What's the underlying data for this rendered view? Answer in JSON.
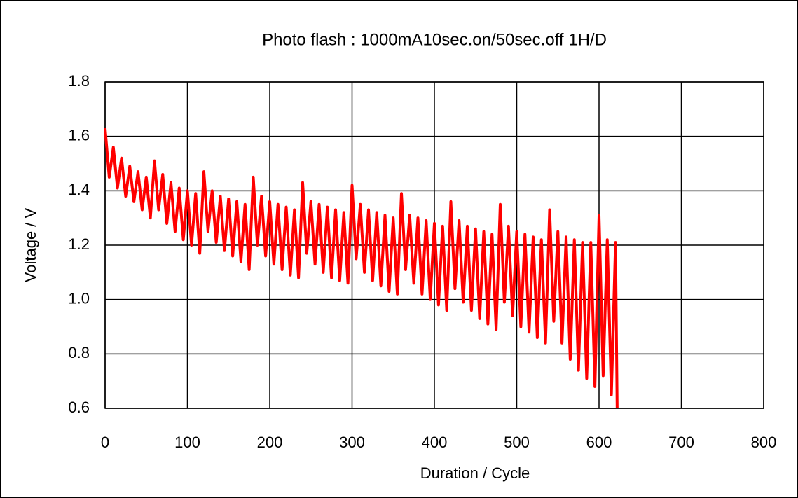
{
  "chart_data": {
    "type": "line",
    "title": "Photo flash  :  1000mA10sec.on/50sec.off 1H/D",
    "xlabel": "Duration / Cycle",
    "ylabel": "Voltage / V",
    "xlim": [
      0,
      800
    ],
    "xticks": [
      0,
      100,
      200,
      300,
      400,
      500,
      600,
      700,
      800
    ],
    "ylim": [
      0.6,
      1.8
    ],
    "yticks": [
      0.6,
      0.8,
      {
        "value": 1,
        "label": "1.0"
      },
      1.2,
      1.4,
      1.6,
      1.8
    ],
    "grid": true,
    "x": [
      0,
      5,
      10,
      15,
      20,
      25,
      30,
      35,
      40,
      45,
      50,
      55,
      60,
      65,
      70,
      75,
      80,
      85,
      90,
      95,
      100,
      105,
      110,
      115,
      120,
      125,
      130,
      135,
      140,
      145,
      150,
      155,
      160,
      165,
      170,
      175,
      180,
      185,
      190,
      195,
      200,
      205,
      210,
      215,
      220,
      225,
      230,
      235,
      240,
      245,
      250,
      255,
      260,
      265,
      270,
      275,
      280,
      285,
      290,
      295,
      300,
      305,
      310,
      315,
      320,
      325,
      330,
      335,
      340,
      345,
      350,
      355,
      360,
      365,
      370,
      375,
      380,
      385,
      390,
      395,
      400,
      405,
      410,
      415,
      420,
      425,
      430,
      435,
      440,
      445,
      450,
      455,
      460,
      465,
      470,
      475,
      480,
      485,
      490,
      495,
      500,
      505,
      510,
      515,
      520,
      525,
      530,
      535,
      540,
      545,
      550,
      555,
      560,
      565,
      570,
      575,
      580,
      585,
      590,
      595,
      600,
      605,
      610,
      615,
      620,
      622
    ],
    "series": [
      {
        "name": "Voltage",
        "color": "#ff0000",
        "values": [
          1.63,
          1.45,
          1.56,
          1.41,
          1.52,
          1.38,
          1.49,
          1.36,
          1.47,
          1.33,
          1.45,
          1.3,
          1.51,
          1.33,
          1.46,
          1.28,
          1.43,
          1.25,
          1.41,
          1.22,
          1.4,
          1.2,
          1.39,
          1.17,
          1.47,
          1.25,
          1.4,
          1.21,
          1.38,
          1.18,
          1.37,
          1.16,
          1.36,
          1.14,
          1.35,
          1.11,
          1.45,
          1.2,
          1.38,
          1.16,
          1.36,
          1.13,
          1.35,
          1.11,
          1.34,
          1.09,
          1.33,
          1.08,
          1.43,
          1.17,
          1.36,
          1.13,
          1.35,
          1.1,
          1.34,
          1.08,
          1.33,
          1.07,
          1.32,
          1.06,
          1.42,
          1.15,
          1.35,
          1.1,
          1.33,
          1.07,
          1.32,
          1.05,
          1.31,
          1.03,
          1.3,
          1.02,
          1.39,
          1.11,
          1.31,
          1.06,
          1.3,
          1.02,
          1.29,
          1.0,
          1.28,
          0.98,
          1.27,
          0.96,
          1.36,
          1.04,
          1.29,
          0.99,
          1.27,
          0.96,
          1.26,
          0.93,
          1.25,
          0.91,
          1.24,
          0.89,
          1.35,
          0.99,
          1.27,
          0.94,
          1.25,
          0.9,
          1.24,
          0.88,
          1.23,
          0.86,
          1.22,
          0.84,
          1.33,
          0.92,
          1.25,
          0.84,
          1.23,
          0.78,
          1.22,
          0.74,
          1.21,
          0.71,
          1.21,
          0.68,
          1.31,
          0.72,
          1.22,
          0.65,
          1.21,
          0.6
        ]
      }
    ]
  }
}
